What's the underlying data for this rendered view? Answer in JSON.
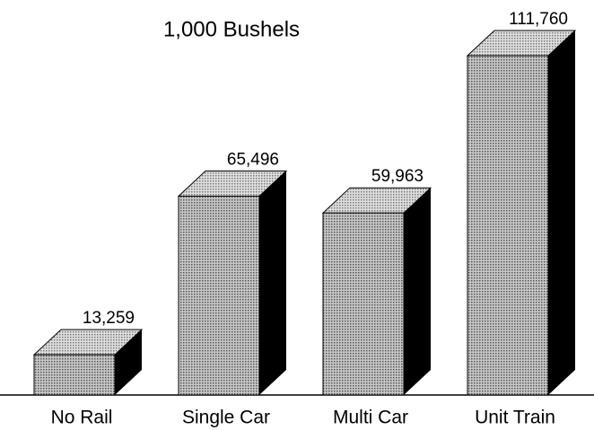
{
  "chart_data": {
    "type": "bar3d",
    "subtitle": "1,000 Bushels",
    "categories": [
      "No Rail",
      "Single Car",
      "Multi Car",
      "Unit Train"
    ],
    "values": [
      13259,
      65496,
      59963,
      111760
    ],
    "value_labels": [
      "13,259",
      "65,496",
      "59,963",
      "111,760"
    ],
    "color": "#a0a0a0"
  }
}
